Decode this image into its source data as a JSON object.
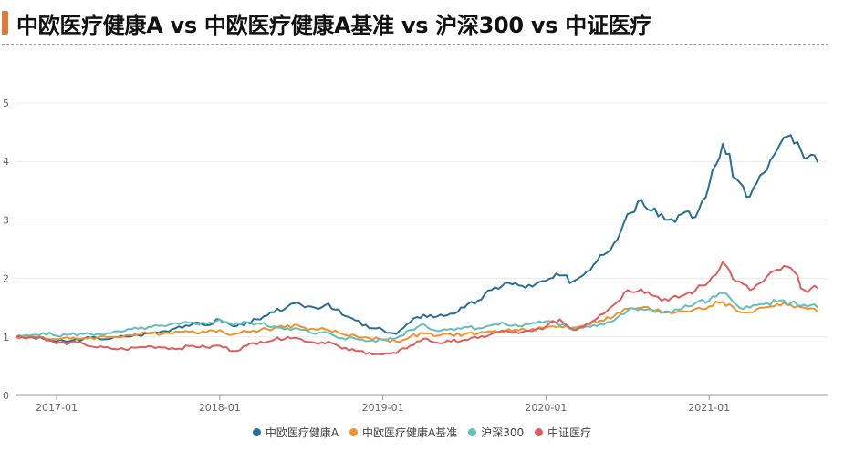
{
  "title": {
    "text": "中欧医疗健康A vs 中欧医疗健康A基准 vs 沪深300 vs 中证医疗",
    "accent_color": "#e07b39"
  },
  "legend": [
    {
      "label": "中欧医疗健康A",
      "color": "#2a6f97"
    },
    {
      "label": "中欧医疗健康A基准",
      "color": "#f0922b"
    },
    {
      "label": "沪深300",
      "color": "#66bdbd"
    },
    {
      "label": "中证医疗",
      "color": "#d9605d"
    }
  ],
  "chart_data": {
    "type": "line",
    "title": "中欧医疗健康A vs 中欧医疗健康A基准 vs 沪深300 vs 中证医疗",
    "xlabel": "",
    "ylabel": "",
    "ylim": [
      0,
      5
    ],
    "yticks": [
      "0",
      "1",
      "2",
      "3",
      "4",
      "5"
    ],
    "xticks": [
      "2017-01",
      "2018-01",
      "2019-01",
      "2020-01",
      "2021-01"
    ],
    "grid": true,
    "legend_position": "bottom",
    "x": [
      "2016-10",
      "2016-11",
      "2016-12",
      "2017-01",
      "2017-02",
      "2017-03",
      "2017-04",
      "2017-05",
      "2017-06",
      "2017-07",
      "2017-08",
      "2017-09",
      "2017-10",
      "2017-11",
      "2017-12",
      "2018-01",
      "2018-02",
      "2018-03",
      "2018-04",
      "2018-05",
      "2018-06",
      "2018-07",
      "2018-08",
      "2018-09",
      "2018-10",
      "2018-11",
      "2018-12",
      "2019-01",
      "2019-02",
      "2019-03",
      "2019-04",
      "2019-05",
      "2019-06",
      "2019-07",
      "2019-08",
      "2019-09",
      "2019-10",
      "2019-11",
      "2019-12",
      "2020-01",
      "2020-02",
      "2020-03",
      "2020-04",
      "2020-05",
      "2020-06",
      "2020-07",
      "2020-08",
      "2020-09",
      "2020-10",
      "2020-11",
      "2020-12",
      "2021-01",
      "2021-02",
      "2021-03",
      "2021-04",
      "2021-05",
      "2021-06",
      "2021-07",
      "2021-08",
      "2021-09"
    ],
    "series": [
      {
        "name": "中欧医疗健康A",
        "color": "#2a6f97",
        "values": [
          1.0,
          0.99,
          0.97,
          0.92,
          0.93,
          0.97,
          0.98,
          0.97,
          1.01,
          1.03,
          1.07,
          1.1,
          1.18,
          1.22,
          1.2,
          1.3,
          1.18,
          1.25,
          1.3,
          1.42,
          1.52,
          1.55,
          1.5,
          1.57,
          1.38,
          1.28,
          1.15,
          1.12,
          1.05,
          1.25,
          1.38,
          1.35,
          1.4,
          1.5,
          1.62,
          1.8,
          1.92,
          1.88,
          1.86,
          1.96,
          2.05,
          1.95,
          2.12,
          2.4,
          2.6,
          3.1,
          3.35,
          3.2,
          3.0,
          3.1,
          3.05,
          3.6,
          4.3,
          3.7,
          3.4,
          3.8,
          4.2,
          4.45,
          4.05,
          3.98
        ]
      },
      {
        "name": "中欧医疗健康A基准",
        "color": "#f0922b",
        "values": [
          1.0,
          1.0,
          0.99,
          0.96,
          0.97,
          0.98,
          0.99,
          1.0,
          1.02,
          1.04,
          1.06,
          1.07,
          1.09,
          1.1,
          1.08,
          1.12,
          1.04,
          1.09,
          1.12,
          1.15,
          1.2,
          1.17,
          1.13,
          1.12,
          1.05,
          1.02,
          0.98,
          0.96,
          0.92,
          1.0,
          1.06,
          1.02,
          1.04,
          1.05,
          1.06,
          1.09,
          1.1,
          1.11,
          1.14,
          1.16,
          1.18,
          1.16,
          1.22,
          1.28,
          1.35,
          1.48,
          1.5,
          1.45,
          1.42,
          1.44,
          1.48,
          1.52,
          1.6,
          1.45,
          1.42,
          1.5,
          1.56,
          1.55,
          1.5,
          1.42
        ]
      },
      {
        "name": "沪深300",
        "color": "#66bdbd",
        "values": [
          1.0,
          1.02,
          1.07,
          1.02,
          1.04,
          1.05,
          1.05,
          1.06,
          1.1,
          1.14,
          1.17,
          1.18,
          1.22,
          1.25,
          1.22,
          1.3,
          1.2,
          1.25,
          1.22,
          1.18,
          1.15,
          1.12,
          1.05,
          1.07,
          0.98,
          0.97,
          0.93,
          0.95,
          0.98,
          1.12,
          1.22,
          1.1,
          1.14,
          1.17,
          1.15,
          1.2,
          1.22,
          1.18,
          1.24,
          1.27,
          1.2,
          1.15,
          1.18,
          1.22,
          1.28,
          1.45,
          1.48,
          1.42,
          1.44,
          1.48,
          1.58,
          1.62,
          1.75,
          1.55,
          1.5,
          1.56,
          1.6,
          1.58,
          1.55,
          1.5
        ]
      },
      {
        "name": "中证医疗",
        "color": "#d9605d",
        "values": [
          1.0,
          1.0,
          0.99,
          0.89,
          0.9,
          0.88,
          0.82,
          0.8,
          0.79,
          0.82,
          0.84,
          0.82,
          0.8,
          0.85,
          0.82,
          0.85,
          0.76,
          0.85,
          0.92,
          0.95,
          1.0,
          0.96,
          0.9,
          0.92,
          0.8,
          0.76,
          0.73,
          0.7,
          0.72,
          0.85,
          0.97,
          0.9,
          0.92,
          0.95,
          0.98,
          1.05,
          1.1,
          1.06,
          1.1,
          1.18,
          1.3,
          1.12,
          1.22,
          1.38,
          1.55,
          1.8,
          1.82,
          1.7,
          1.62,
          1.7,
          1.8,
          1.95,
          2.28,
          1.95,
          1.8,
          1.95,
          2.15,
          2.18,
          1.8,
          1.83
        ]
      }
    ]
  }
}
